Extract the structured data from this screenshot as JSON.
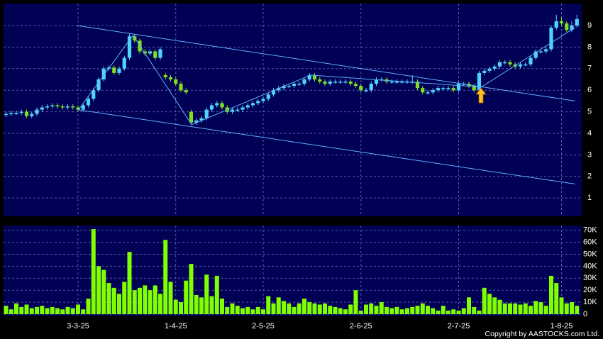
{
  "chart_data": {
    "type": "candlestick",
    "categories": [
      null,
      null,
      null,
      null,
      null,
      null,
      null,
      null,
      null,
      null,
      null,
      null,
      null,
      null,
      "3-3-25",
      null,
      null,
      null,
      null,
      null,
      null,
      null,
      null,
      null,
      null,
      null,
      null,
      null,
      null,
      null,
      null,
      null,
      null,
      "1-4-25",
      null,
      null,
      null,
      null,
      null,
      null,
      null,
      null,
      null,
      null,
      null,
      null,
      null,
      null,
      null,
      null,
      "2-5-25",
      null,
      null,
      null,
      null,
      null,
      null,
      null,
      null,
      null,
      null,
      null,
      null,
      null,
      null,
      null,
      null,
      null,
      null,
      "2-6-25",
      null,
      null,
      null,
      null,
      null,
      null,
      null,
      null,
      null,
      null,
      null,
      null,
      null,
      null,
      null,
      null,
      null,
      null,
      "2-7-25",
      null,
      null,
      null,
      null,
      null,
      null,
      null,
      null,
      null,
      null,
      null,
      null,
      null,
      null,
      null,
      null,
      null,
      null,
      null,
      "1-8-25",
      null,
      null,
      null
    ],
    "open": [
      4.85,
      4.9,
      4.95,
      4.95,
      5.0,
      4.8,
      4.9,
      5.1,
      5.2,
      5.25,
      5.3,
      5.25,
      5.2,
      5.25,
      5.2,
      5.1,
      5.3,
      5.6,
      6.0,
      6.5,
      7.0,
      7.05,
      6.8,
      7.0,
      7.5,
      8.5,
      8.3,
      7.8,
      7.7,
      7.8,
      7.5,
      6.7,
      6.6,
      6.5,
      6.3,
      6.0,
      5.0,
      4.5,
      4.6,
      4.7,
      5.1,
      5.3,
      5.4,
      5.2,
      5.0,
      5.1,
      5.1,
      5.2,
      5.3,
      5.4,
      5.5,
      5.6,
      5.8,
      6.0,
      6.1,
      6.2,
      6.2,
      6.3,
      6.3,
      6.5,
      6.7,
      6.5,
      6.4,
      6.3,
      6.4,
      6.4,
      6.4,
      6.4,
      6.3,
      6.2,
      6.0,
      6.0,
      6.3,
      6.5,
      6.5,
      6.4,
      6.4,
      6.4,
      6.4,
      6.4,
      6.4,
      6.1,
      5.9,
      5.9,
      6.0,
      6.1,
      6.1,
      6.1,
      6.0,
      6.3,
      6.3,
      6.2,
      6.0,
      6.8,
      6.9,
      7.0,
      7.1,
      7.3,
      7.3,
      7.2,
      7.1,
      7.2,
      7.2,
      7.5,
      7.8,
      7.8,
      7.9,
      8.9,
      9.2,
      9.1,
      8.8,
      9.0
    ],
    "high": [
      5.0,
      5.05,
      5.05,
      5.1,
      5.1,
      5.0,
      5.2,
      5.3,
      5.35,
      5.4,
      5.4,
      5.35,
      5.35,
      5.35,
      5.3,
      5.4,
      5.7,
      6.1,
      6.6,
      7.1,
      7.15,
      7.15,
      7.1,
      7.6,
      8.6,
      8.6,
      8.4,
      7.9,
      7.9,
      7.9,
      8.0,
      6.8,
      6.7,
      6.6,
      6.4,
      6.1,
      5.1,
      4.7,
      4.8,
      5.2,
      5.4,
      5.5,
      5.5,
      5.3,
      5.2,
      5.2,
      5.3,
      5.4,
      5.5,
      5.6,
      5.7,
      5.9,
      6.1,
      6.2,
      6.3,
      6.3,
      6.4,
      6.4,
      6.6,
      6.8,
      6.8,
      6.6,
      6.5,
      6.5,
      6.5,
      6.5,
      6.5,
      6.5,
      6.4,
      6.3,
      6.1,
      6.4,
      6.6,
      6.6,
      6.6,
      6.5,
      6.5,
      6.5,
      6.5,
      6.7,
      6.5,
      6.2,
      6.0,
      6.1,
      6.2,
      6.2,
      6.2,
      6.2,
      6.4,
      6.4,
      6.4,
      6.3,
      6.9,
      7.0,
      7.1,
      7.2,
      7.4,
      7.4,
      7.4,
      7.3,
      7.3,
      7.3,
      7.6,
      7.9,
      7.9,
      8.0,
      9.0,
      9.5,
      9.4,
      9.2,
      9.2,
      9.5
    ],
    "low": [
      4.75,
      4.8,
      4.85,
      4.85,
      4.7,
      4.7,
      4.8,
      5.0,
      5.1,
      5.15,
      5.15,
      5.1,
      5.1,
      5.1,
      5.0,
      5.0,
      5.2,
      5.5,
      5.9,
      6.4,
      6.9,
      6.7,
      6.7,
      6.9,
      7.4,
      8.2,
      7.7,
      7.6,
      7.6,
      7.4,
      7.4,
      6.5,
      6.4,
      6.2,
      5.9,
      5.8,
      4.4,
      4.4,
      4.5,
      4.6,
      5.0,
      5.2,
      5.1,
      4.9,
      4.9,
      5.0,
      5.0,
      5.1,
      5.2,
      5.3,
      5.4,
      5.5,
      5.7,
      5.9,
      6.0,
      6.1,
      6.1,
      6.2,
      6.2,
      6.4,
      6.4,
      6.3,
      6.2,
      6.2,
      6.3,
      6.3,
      6.3,
      6.2,
      6.1,
      5.9,
      5.9,
      5.9,
      6.2,
      6.4,
      6.3,
      6.3,
      6.3,
      6.3,
      6.3,
      6.3,
      6.0,
      5.8,
      5.8,
      5.8,
      5.9,
      6.0,
      6.0,
      5.9,
      5.9,
      6.2,
      6.1,
      5.9,
      5.9,
      6.7,
      6.8,
      6.9,
      7.0,
      7.2,
      7.1,
      7.0,
      7.0,
      7.1,
      7.1,
      7.4,
      7.7,
      7.7,
      7.8,
      8.8,
      9.0,
      8.7,
      8.7,
      8.9
    ],
    "close": [
      4.9,
      4.95,
      4.95,
      5.0,
      4.8,
      4.9,
      5.1,
      5.2,
      5.25,
      5.3,
      5.25,
      5.2,
      5.25,
      5.2,
      5.1,
      5.3,
      5.6,
      6.0,
      6.5,
      7.0,
      7.05,
      6.8,
      7.0,
      7.5,
      8.5,
      8.3,
      7.8,
      7.7,
      7.8,
      7.5,
      7.9,
      6.6,
      6.5,
      6.3,
      6.0,
      5.9,
      4.5,
      4.6,
      4.7,
      5.1,
      5.3,
      5.4,
      5.2,
      5.0,
      5.1,
      5.1,
      5.2,
      5.3,
      5.4,
      5.5,
      5.6,
      5.8,
      6.0,
      6.1,
      6.2,
      6.2,
      6.3,
      6.3,
      6.5,
      6.7,
      6.5,
      6.4,
      6.3,
      6.4,
      6.4,
      6.4,
      6.4,
      6.3,
      6.2,
      6.0,
      6.0,
      6.3,
      6.5,
      6.5,
      6.4,
      6.4,
      6.4,
      6.4,
      6.4,
      6.4,
      6.1,
      5.9,
      5.9,
      6.0,
      6.1,
      6.1,
      6.1,
      6.0,
      6.3,
      6.3,
      6.2,
      6.0,
      6.8,
      6.9,
      7.0,
      7.1,
      7.3,
      7.3,
      7.2,
      7.1,
      7.2,
      7.2,
      7.5,
      7.8,
      7.8,
      7.9,
      8.9,
      9.2,
      9.1,
      8.8,
      9.0,
      9.3
    ],
    "up_color": "#4fd4ff",
    "down_color": "#80e020",
    "ylim": [
      0.15,
      10.02
    ],
    "yticks": [
      1,
      2,
      3,
      4,
      5,
      6,
      7,
      8,
      9
    ],
    "grid": true,
    "trend_lines": [
      {
        "from": [
          13.8,
          9.0
        ],
        "to": [
          110.6,
          5.5
        ]
      },
      {
        "from": [
          13.8,
          5.1
        ],
        "to": [
          110.6,
          1.65
        ]
      },
      {
        "from": [
          59.2,
          6.7
        ],
        "to": [
          92.1,
          6.15
        ]
      },
      {
        "from": [
          14.1,
          5.1
        ],
        "to": [
          24.7,
          8.55
        ]
      },
      {
        "from": [
          24.7,
          8.55
        ],
        "to": [
          36.1,
          4.4
        ]
      },
      {
        "from": [
          36.1,
          4.4
        ],
        "to": [
          59.2,
          6.7
        ]
      },
      {
        "from": [
          92.1,
          6.1
        ],
        "to": [
          110.6,
          8.9
        ]
      }
    ],
    "trend_color": "#5fb0ff",
    "volume": {
      "values": [
        7000,
        4000,
        9000,
        6000,
        8000,
        5000,
        6000,
        7000,
        5000,
        6000,
        5000,
        4000,
        6000,
        5000,
        8000,
        4000,
        13000,
        71000,
        40000,
        37000,
        26000,
        22000,
        17000,
        27000,
        52000,
        20000,
        22000,
        24000,
        20000,
        24000,
        17000,
        62000,
        27000,
        12000,
        10000,
        28000,
        42000,
        16000,
        14000,
        33000,
        15000,
        32000,
        13000,
        6000,
        9000,
        7000,
        5000,
        6000,
        4000,
        6000,
        4000,
        15000,
        9000,
        14000,
        11000,
        9000,
        6000,
        9000,
        13000,
        10000,
        9000,
        8000,
        9000,
        7000,
        6000,
        5000,
        4000,
        8000,
        20000,
        3000,
        8000,
        9000,
        7000,
        10000,
        6000,
        5000,
        6000,
        4000,
        5000,
        6000,
        7000,
        9000,
        7000,
        5000,
        3000,
        7000,
        3000,
        4000,
        3000,
        5000,
        14000,
        6000,
        3000,
        22000,
        17000,
        14000,
        12000,
        9000,
        9000,
        9000,
        8000,
        9000,
        7000,
        11000,
        10000,
        7000,
        32000,
        26000,
        14000,
        9000,
        10000,
        7000
      ],
      "color": "#80ff00",
      "ylim": [
        -1200,
        74000
      ],
      "yticks": [
        {
          "value": 0,
          "label": "0"
        },
        {
          "value": 10000,
          "label": "10K"
        },
        {
          "value": 20000,
          "label": "20K"
        },
        {
          "value": 30000,
          "label": "30K"
        },
        {
          "value": 40000,
          "label": "40K"
        },
        {
          "value": 50000,
          "label": "50K"
        },
        {
          "value": 60000,
          "label": "60K"
        },
        {
          "value": 70000,
          "label": "70K"
        }
      ]
    },
    "footer": "Copyright by AASTOCKS.com Ltd."
  }
}
